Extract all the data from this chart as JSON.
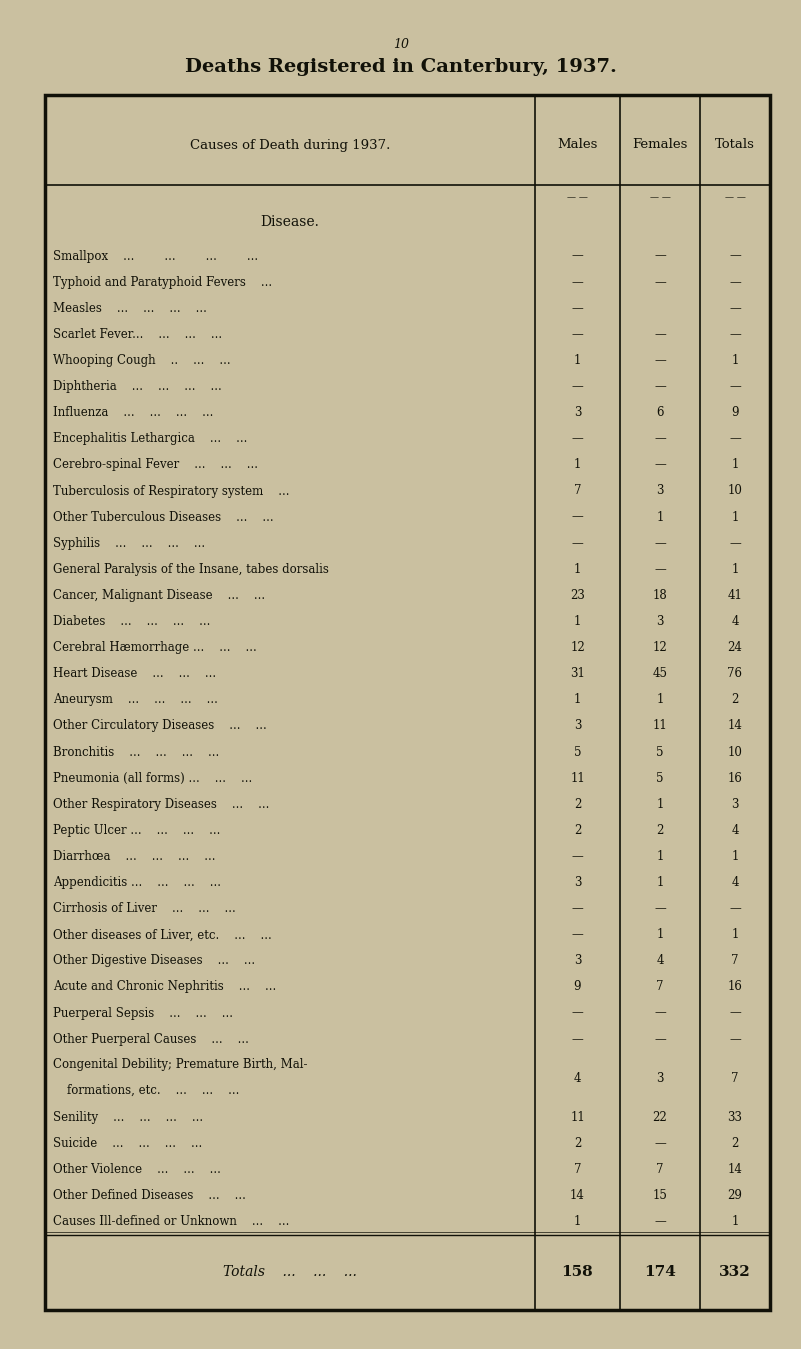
{
  "page_number": "10",
  "title": "Deaths Registered in Canterbury, 1937.",
  "header_col1": "Causes of Death during 1937.",
  "header_col2": "Males",
  "header_col3": "Females",
  "header_col4": "Totals",
  "section_header": "Disease.",
  "bg_color": "#cac0a0",
  "text_color": "#111108",
  "rows": [
    [
      "Smallpox    ...        ...        ...        ...",
      "—",
      "—",
      "—"
    ],
    [
      "Typhoid and Paratyphoid Fevers    ...",
      "—",
      "—",
      "—"
    ],
    [
      "Measles    ...    ...    ...    ...",
      "—",
      "",
      "—"
    ],
    [
      "Scarlet Fever...    ...    ...    ...",
      "—",
      "—",
      "—"
    ],
    [
      "Whooping Cough    ..    ...    ...",
      "1",
      "—",
      "1"
    ],
    [
      "Diphtheria    ...    ...    ...    ...",
      "—",
      "—",
      "—"
    ],
    [
      "Influenza    ...    ...    ...    ...",
      "3",
      "6",
      "9"
    ],
    [
      "Encephalitis Lethargica    ...    ...",
      "—",
      "—",
      "—"
    ],
    [
      "Cerebro-spinal Fever    ...    ...    ...",
      "1",
      "—",
      "1"
    ],
    [
      "Tuberculosis of Respiratory system    ...",
      "7",
      "3",
      "10"
    ],
    [
      "Other Tuberculous Diseases    ...    ...",
      "—",
      "1",
      "1"
    ],
    [
      "Syphilis    ...    ...    ...    ...",
      "—",
      "—",
      "—"
    ],
    [
      "General Paralysis of the Insane, tabes dorsalis",
      "1",
      "—",
      "1"
    ],
    [
      "Cancer, Malignant Disease    ...    ...",
      "23",
      "18",
      "41"
    ],
    [
      "Diabetes    ...    ...    ...    ...",
      "1",
      "3",
      "4"
    ],
    [
      "Cerebral Hæmorrhage ...    ...    ...",
      "12",
      "12",
      "24"
    ],
    [
      "Heart Disease    ...    ...    ...",
      "31",
      "45",
      "76"
    ],
    [
      "Aneurysm    ...    ...    ...    ...",
      "1",
      "1",
      "2"
    ],
    [
      "Other Circulatory Diseases    ...    ...",
      "3",
      "11",
      "14"
    ],
    [
      "Bronchitis    ...    ...    ...    ...",
      "5",
      "5",
      "10"
    ],
    [
      "Pneumonia (all forms) ...    ...    ...",
      "11",
      "5",
      "16"
    ],
    [
      "Other Respiratory Diseases    ...    ...",
      "2",
      "1",
      "3"
    ],
    [
      "Peptic Ulcer ...    ...    ...    ...",
      "2",
      "2",
      "4"
    ],
    [
      "Diarrhœa    ...    ...    ...    ...",
      "—",
      "1",
      "1"
    ],
    [
      "Appendicitis ...    ...    ...    ...",
      "3",
      "1",
      "4"
    ],
    [
      "Cirrhosis of Liver    ...    ...    ...",
      "—",
      "—",
      "—"
    ],
    [
      "Other diseases of Liver, etc.    ...    ...",
      "—",
      "1",
      "1"
    ],
    [
      "Other Digestive Diseases    ...    ...",
      "3",
      "4",
      "7"
    ],
    [
      "Acute and Chronic Nephritis    ...    ...",
      "9",
      "7",
      "16"
    ],
    [
      "Puerperal Sepsis    ...    ...    ...",
      "—",
      "—",
      "—"
    ],
    [
      "Other Puerperal Causes    ...    ...",
      "—",
      "—",
      "—"
    ],
    [
      "Congenital Debility; Premature Birth, Mal-\nformations, etc.    ...    ...    ...",
      "4",
      "3",
      "7"
    ],
    [
      "Senility    ...    ...    ...    ...",
      "11",
      "22",
      "33"
    ],
    [
      "Suicide    ...    ...    ...    ...",
      "2",
      "—",
      "2"
    ],
    [
      "Other Violence    ...    ...    ...",
      "7",
      "7",
      "14"
    ],
    [
      "Other Defined Diseases    ...    ...",
      "14",
      "15",
      "29"
    ],
    [
      "Causes Ill-defined or Unknown    ...    ...",
      "1",
      "—",
      "1"
    ]
  ],
  "totals_label": "Totals    ...    ...    ...",
  "totals_values": [
    "158",
    "174",
    "332"
  ],
  "font_size_title": 14,
  "font_size_pagenumber": 9,
  "font_size_header": 9.5,
  "font_size_body": 8.5,
  "font_size_totals": 10
}
